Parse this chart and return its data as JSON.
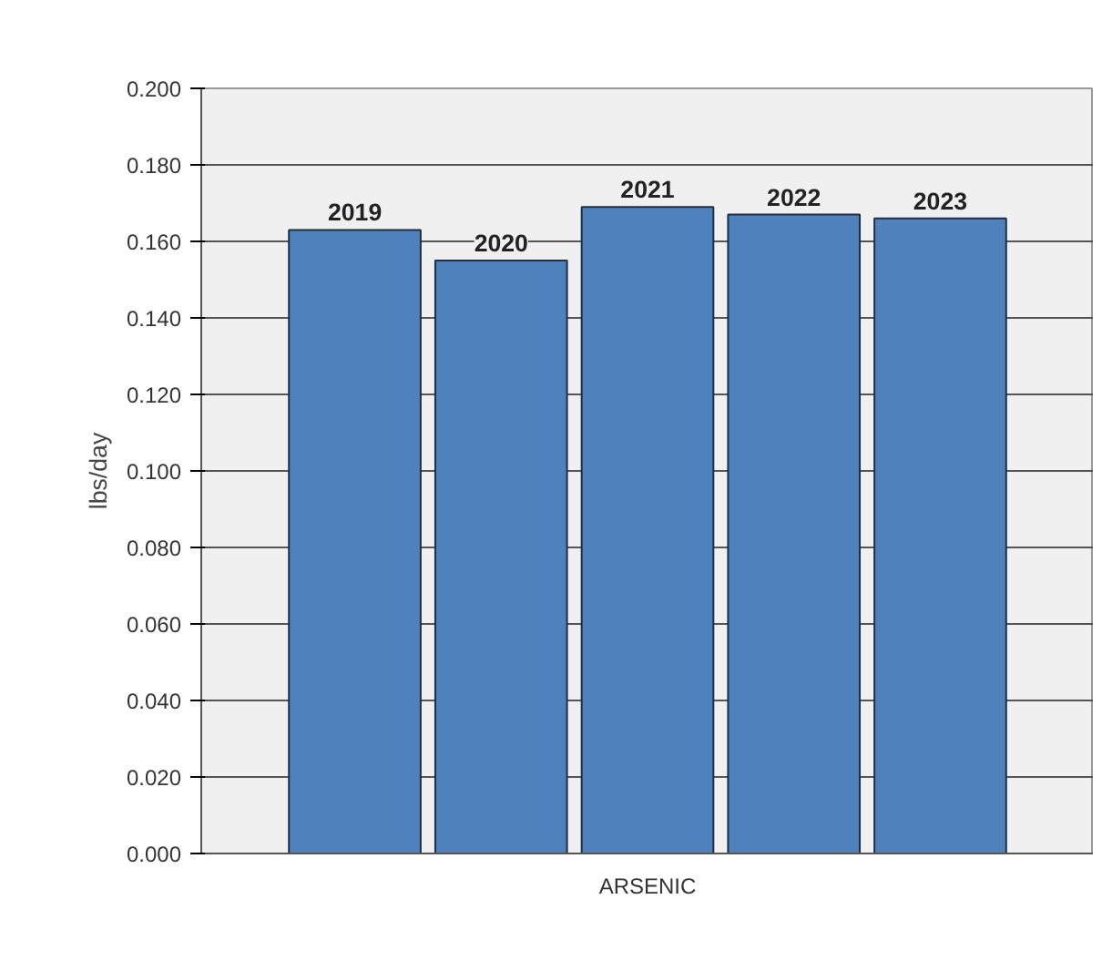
{
  "chart_data": {
    "type": "bar",
    "categories": [
      "ARSENIC"
    ],
    "ylabel": "lbs/day",
    "ylim": [
      0,
      0.2
    ],
    "yticks": [
      {
        "value": 0,
        "label": "0.000"
      },
      {
        "value": 0.02,
        "label": "0.020"
      },
      {
        "value": 0.04,
        "label": "0.040"
      },
      {
        "value": 0.06,
        "label": "0.060"
      },
      {
        "value": 0.08,
        "label": "0.080"
      },
      {
        "value": 0.1,
        "label": "0.100"
      },
      {
        "value": 0.12,
        "label": "0.120"
      },
      {
        "value": 0.14,
        "label": "0.140"
      },
      {
        "value": 0.16,
        "label": "0.160"
      },
      {
        "value": 0.18,
        "label": "0.180"
      },
      {
        "value": 0.2,
        "label": "0.200"
      }
    ],
    "series": [
      {
        "name": "2019",
        "color": "#4f81bd",
        "values": [
          0.163
        ]
      },
      {
        "name": "2020",
        "color": "#4f81bd",
        "values": [
          0.155
        ]
      },
      {
        "name": "2021",
        "color": "#4f81bd",
        "values": [
          0.169
        ]
      },
      {
        "name": "2022",
        "color": "#4f81bd",
        "values": [
          0.167
        ]
      },
      {
        "name": "2023",
        "color": "#4f81bd",
        "values": [
          0.166
        ]
      }
    ],
    "grid": "y"
  }
}
